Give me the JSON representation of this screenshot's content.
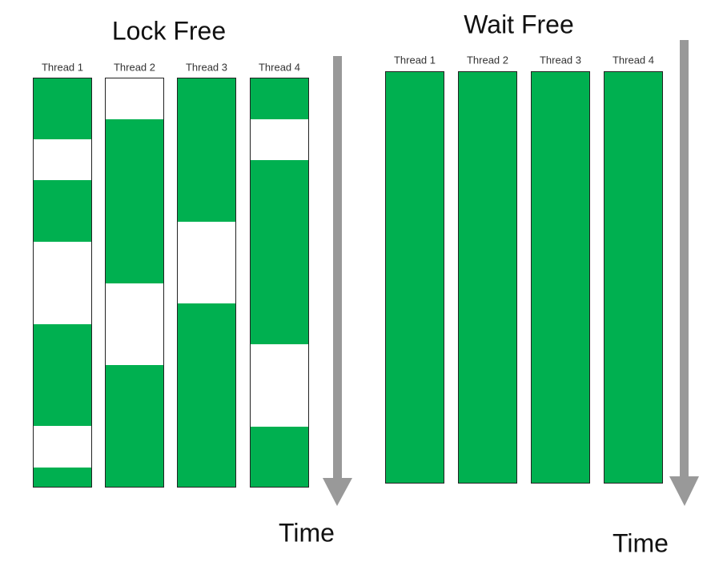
{
  "lock_free": {
    "title": "Lock Free",
    "threads": [
      "Thread 1",
      "Thread 2",
      "Thread 3",
      "Thread 4"
    ],
    "time_label": "Time"
  },
  "wait_free": {
    "title": "Wait Free",
    "threads": [
      "Thread 1",
      "Thread 2",
      "Thread 3",
      "Thread 4"
    ],
    "time_label": "Time"
  }
}
